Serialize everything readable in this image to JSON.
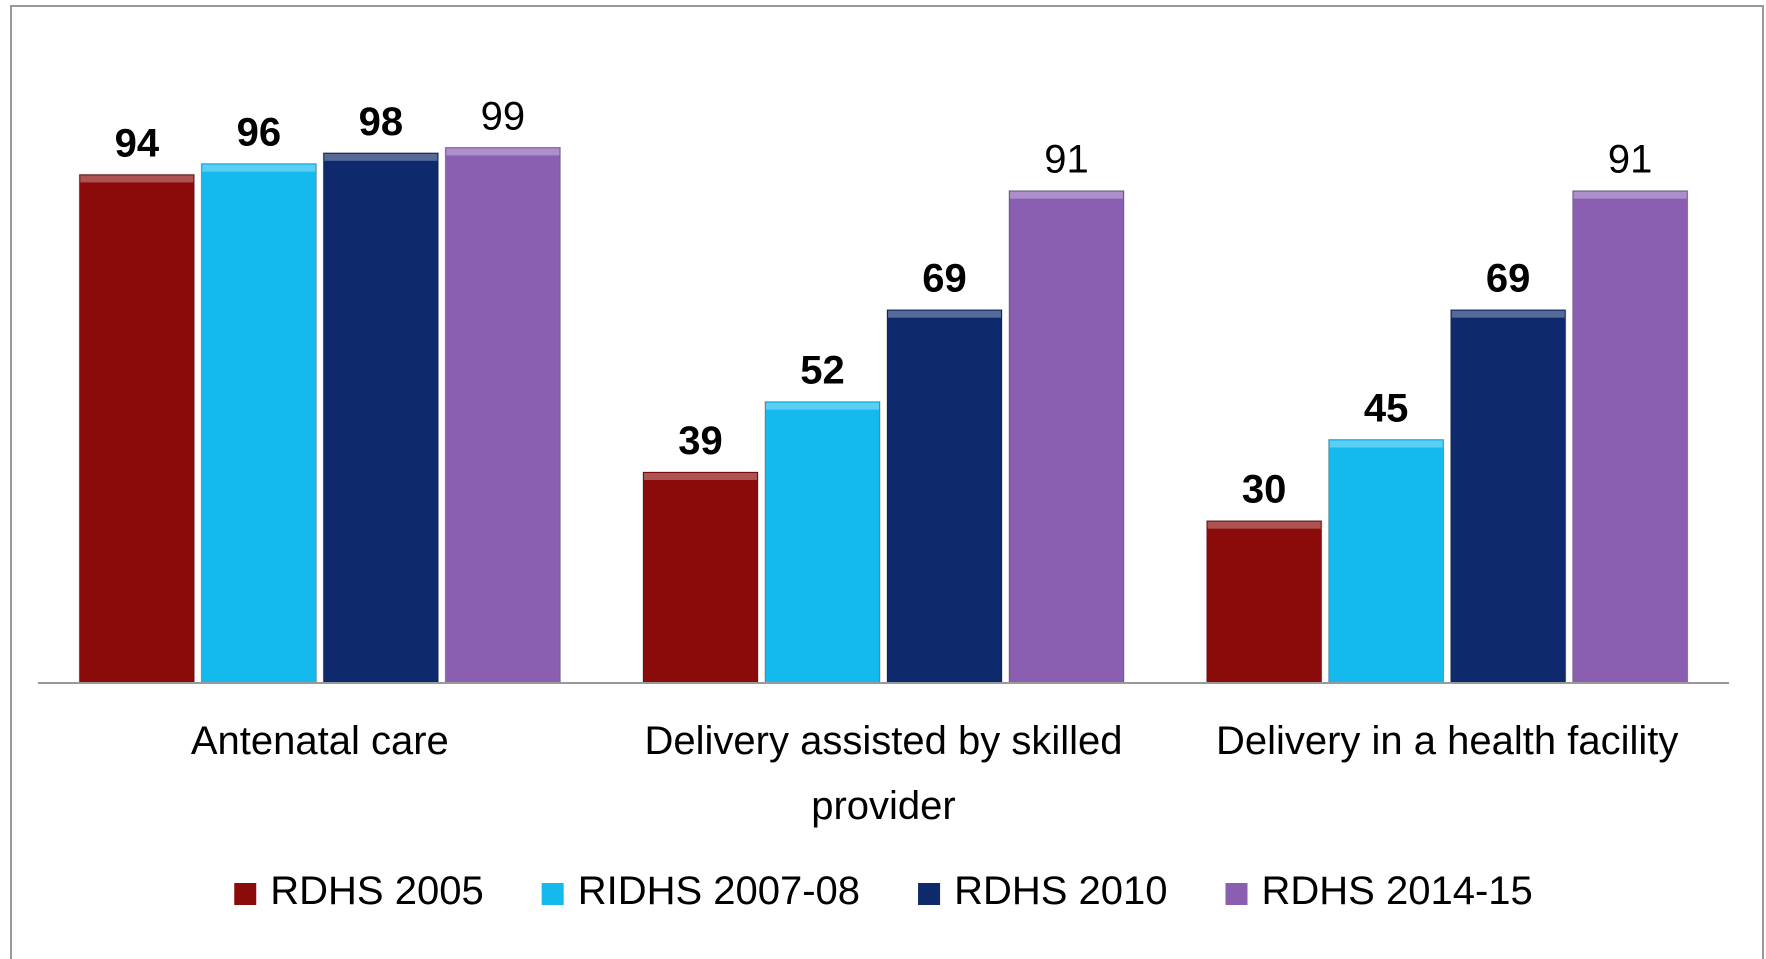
{
  "chart_data": {
    "type": "bar",
    "categories": [
      "Antenatal care",
      "Delivery assisted by skilled provider",
      "Delivery in a health facility"
    ],
    "series": [
      {
        "name": "RDHS 2005",
        "color": "#8b0a0a",
        "label_weight": "bold",
        "values": [
          94,
          39,
          30
        ]
      },
      {
        "name": "RIDHS 2007-08",
        "color": "#14b9ee",
        "label_weight": "bold",
        "values": [
          96,
          52,
          45
        ]
      },
      {
        "name": "RDHS 2010",
        "color": "#0e2a6c",
        "label_weight": "bold",
        "values": [
          98,
          69,
          69
        ]
      },
      {
        "name": "RDHS 2014-15",
        "color": "#8a5fb2",
        "label_weight": "normal",
        "values": [
          99,
          91,
          91
        ]
      }
    ],
    "ylim": [
      0,
      100
    ],
    "grid": false,
    "legend": "bottom"
  }
}
